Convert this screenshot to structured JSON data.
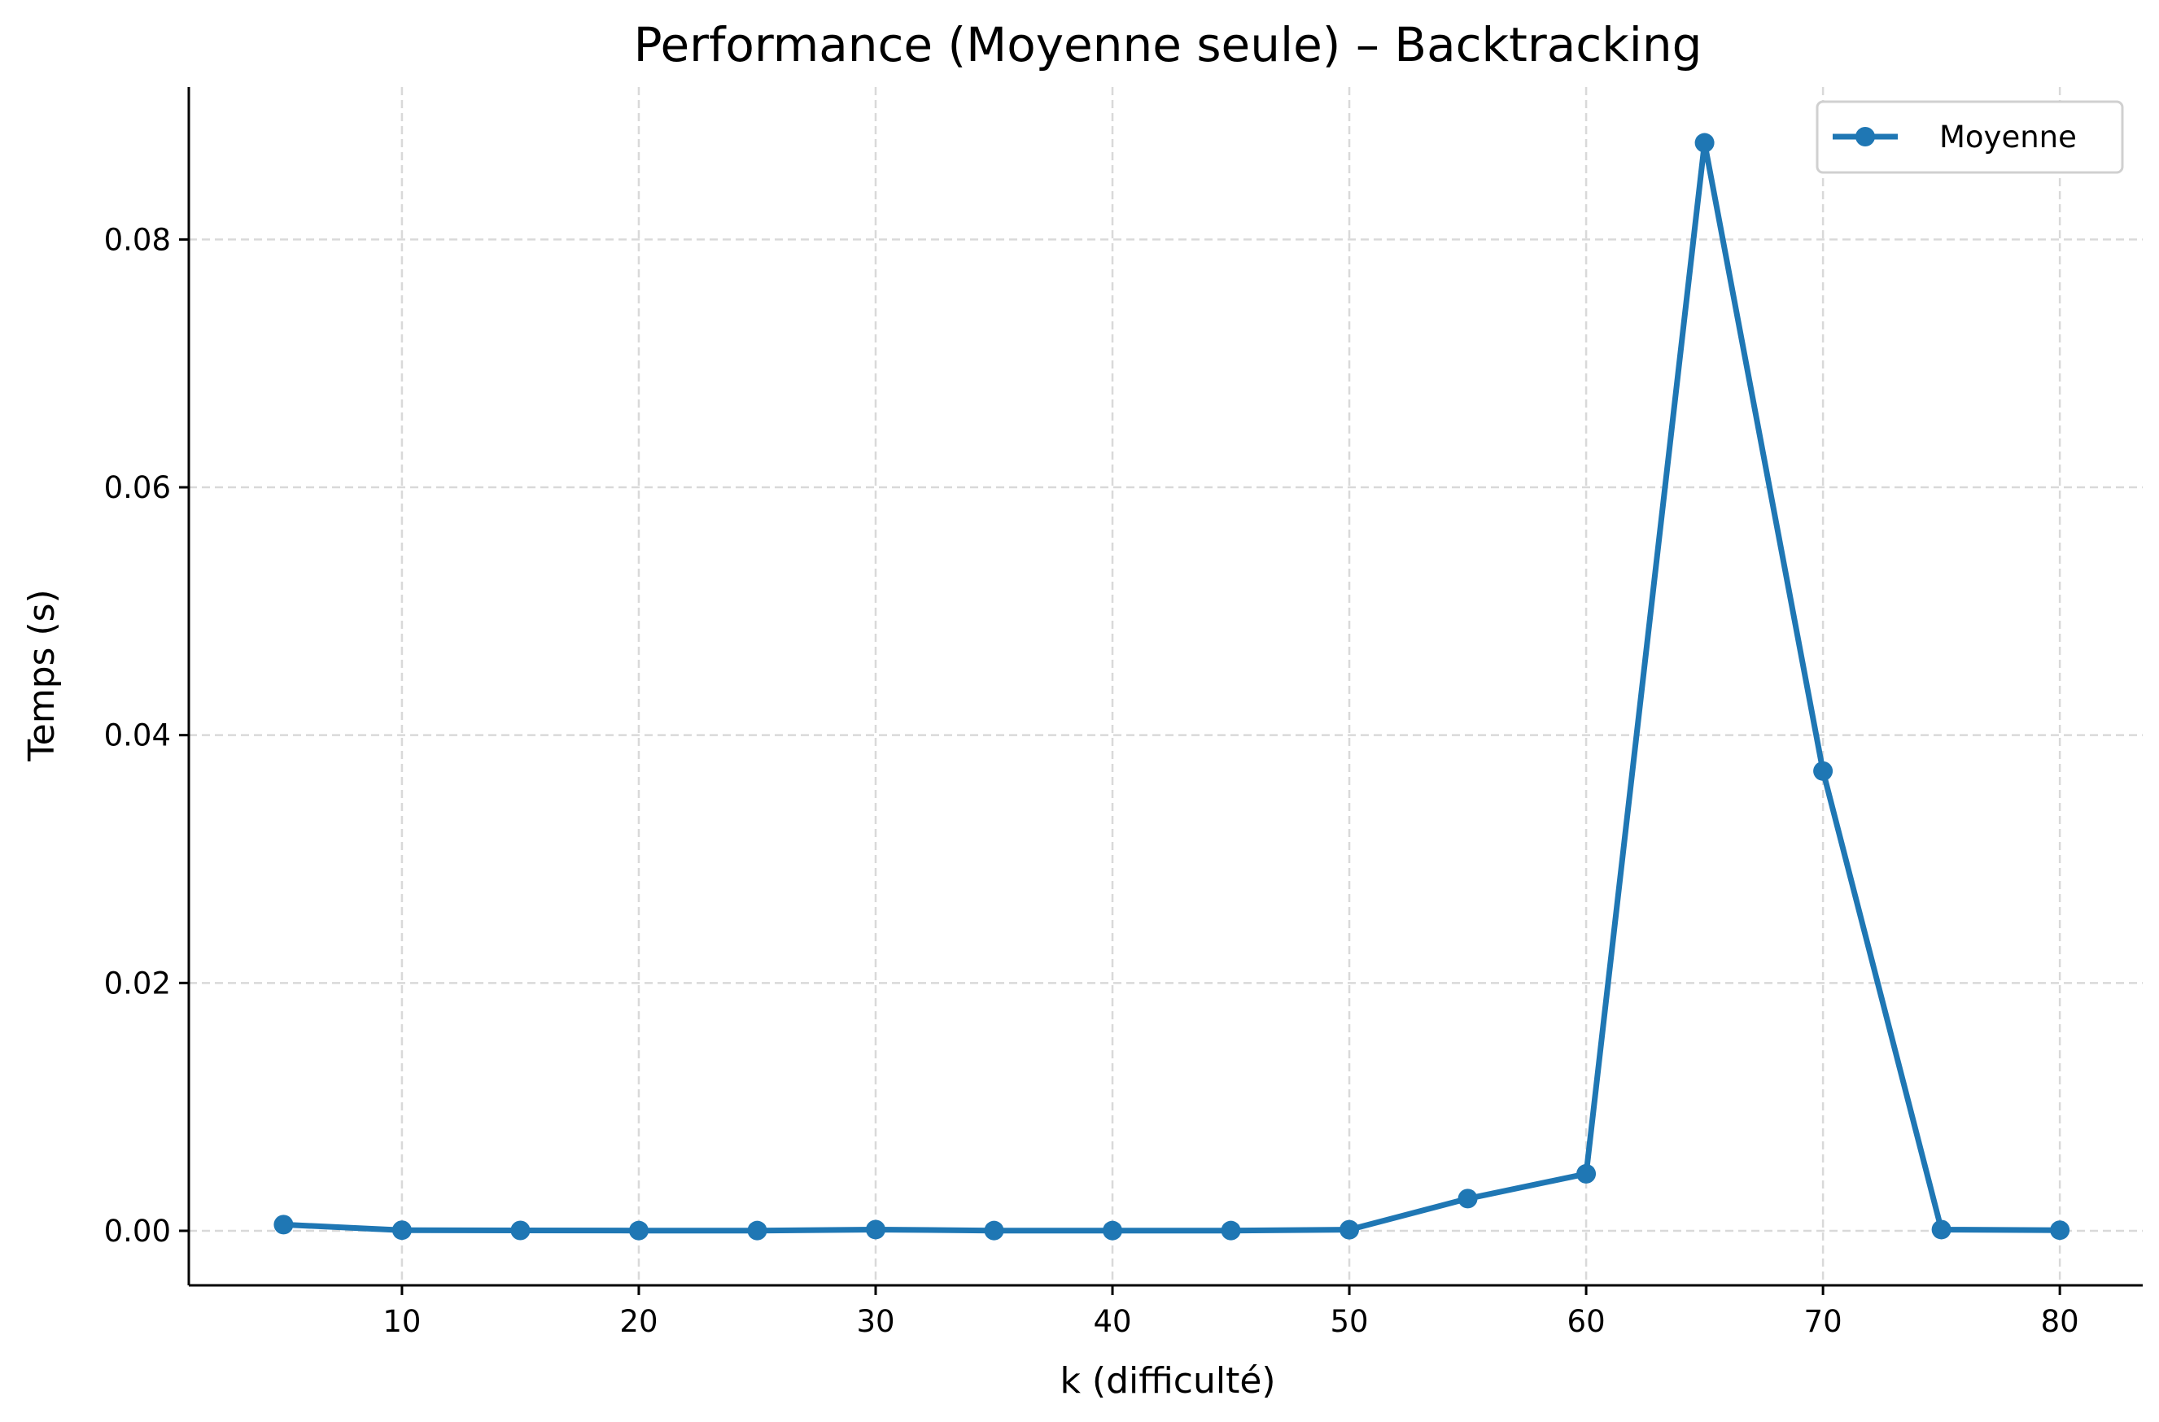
{
  "chart_data": {
    "type": "line",
    "title": "Performance (Moyenne seule) – Backtracking",
    "xlabel": "k (difficulté)",
    "ylabel": "Temps (s)",
    "xlim": [
      1,
      83.5
    ],
    "ylim": [
      -0.0044,
      0.0923
    ],
    "xticks": [
      10,
      20,
      30,
      40,
      50,
      60,
      70,
      80
    ],
    "yticks": [
      0.0,
      0.02,
      0.04,
      0.06,
      0.08
    ],
    "ytick_labels": [
      "0.00",
      "0.02",
      "0.04",
      "0.06",
      "0.08"
    ],
    "grid": true,
    "legend_position": "top-right",
    "series": [
      {
        "name": "Moyenne",
        "color": "#1f77b4",
        "x": [
          5,
          10,
          15,
          20,
          25,
          30,
          35,
          40,
          45,
          50,
          55,
          60,
          65,
          70,
          75,
          80
        ],
        "y": [
          0.0005,
          5e-05,
          3e-05,
          2e-05,
          2e-05,
          0.0001,
          2e-05,
          2e-05,
          2e-05,
          9e-05,
          0.0026,
          0.0046,
          0.0878,
          0.0371,
          0.0001,
          5e-05
        ]
      }
    ]
  }
}
